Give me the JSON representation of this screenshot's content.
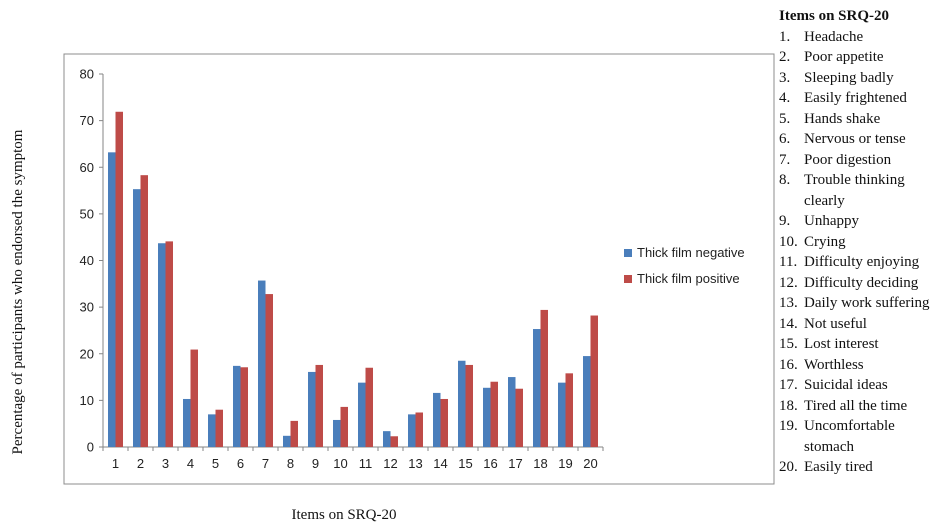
{
  "chart_data": {
    "type": "bar",
    "categories": [
      "1",
      "2",
      "3",
      "4",
      "5",
      "6",
      "7",
      "8",
      "9",
      "10",
      "11",
      "12",
      "13",
      "14",
      "15",
      "16",
      "17",
      "18",
      "19",
      "20"
    ],
    "series": [
      {
        "name": "Thick film negative",
        "color": "#4a7ebb",
        "values": [
          63.2,
          55.3,
          43.7,
          10.3,
          7.0,
          17.4,
          35.7,
          2.4,
          16.1,
          5.8,
          13.8,
          3.4,
          7.0,
          11.6,
          18.5,
          12.7,
          15.0,
          25.3,
          13.8,
          19.5
        ]
      },
      {
        "name": "Thick film positive",
        "color": "#be4b48",
        "values": [
          71.9,
          58.3,
          44.1,
          20.9,
          8.0,
          17.1,
          32.8,
          5.6,
          17.6,
          8.6,
          17.0,
          2.3,
          7.4,
          10.3,
          17.6,
          14.0,
          12.5,
          29.4,
          15.8,
          28.2
        ]
      }
    ],
    "yticks": [
      "0",
      "10",
      "20",
      "30",
      "40",
      "50",
      "60",
      "70",
      "80"
    ],
    "ylim": [
      0,
      80
    ],
    "xlabel": "Items on SRQ-20",
    "ylabel": "Percentage of participants who endorsed the symptom",
    "legend_position": "right"
  },
  "items_panel": {
    "title": "Items on SRQ-20",
    "items": [
      {
        "num": "1.",
        "text": "Headache"
      },
      {
        "num": "2.",
        "text": "Poor appetite"
      },
      {
        "num": "3.",
        "text": "Sleeping badly"
      },
      {
        "num": "4.",
        "text": "Easily frightened"
      },
      {
        "num": "5.",
        "text": "Hands shake"
      },
      {
        "num": "6.",
        "text": "Nervous or tense"
      },
      {
        "num": "7.",
        "text": "Poor digestion"
      },
      {
        "num": "8.",
        "text": "Trouble thinking clearly"
      },
      {
        "num": "9.",
        "text": "Unhappy"
      },
      {
        "num": "10.",
        "text": "Crying"
      },
      {
        "num": "11.",
        "text": "Difficulty enjoying"
      },
      {
        "num": "12.",
        "text": "Difficulty deciding"
      },
      {
        "num": "13.",
        "text": "Daily work suffering"
      },
      {
        "num": "14.",
        "text": "Not useful"
      },
      {
        "num": "15.",
        "text": "Lost interest"
      },
      {
        "num": "16.",
        "text": "Worthless"
      },
      {
        "num": "17.",
        "text": "Suicidal ideas"
      },
      {
        "num": "18.",
        "text": "Tired all the time"
      },
      {
        "num": "19.",
        "text": "Uncomfortable stomach"
      },
      {
        "num": "20.",
        "text": "Easily tired"
      }
    ]
  }
}
